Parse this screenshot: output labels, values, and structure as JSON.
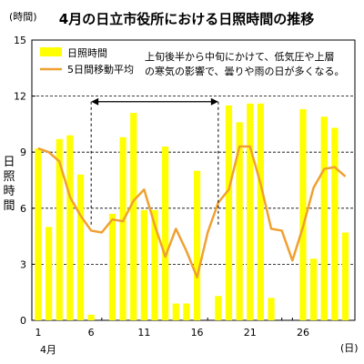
{
  "chart_data": {
    "type": "bar+line",
    "title": "4月の日立市役所における日照時間の推移",
    "ylabel_unit": "(時間)",
    "ylabel": [
      "日",
      "照",
      "時",
      "間"
    ],
    "xlabel_unit": "(日)",
    "month_label": "4月",
    "ylim": [
      0,
      15
    ],
    "yticks": [
      0,
      3,
      6,
      9,
      12,
      15
    ],
    "xticks": [
      1,
      6,
      11,
      16,
      21,
      26
    ],
    "grid": "horizontal dashed at 3, 6, 9, 12",
    "legend_position": "top-left",
    "days": [
      1,
      2,
      3,
      4,
      5,
      6,
      7,
      8,
      9,
      10,
      11,
      12,
      13,
      14,
      15,
      16,
      17,
      18,
      19,
      20,
      21,
      22,
      23,
      24,
      25,
      26,
      27,
      28,
      29,
      30
    ],
    "series": [
      {
        "name": "日照時間",
        "kind": "bar",
        "color": "#ffff00",
        "values": [
          9.2,
          5.0,
          9.7,
          9.9,
          7.8,
          0.3,
          0.0,
          5.7,
          9.8,
          11.1,
          5.9,
          5.9,
          9.3,
          0.9,
          0.9,
          8.0,
          0.0,
          1.3,
          11.5,
          10.6,
          11.6,
          11.6,
          1.2,
          0.0,
          0.0,
          11.3,
          3.3,
          10.9,
          10.3,
          4.7
        ]
      },
      {
        "name": "5日間移動平均",
        "kind": "line",
        "color": "#f0a030",
        "values": [
          9.2,
          9.0,
          8.5,
          6.6,
          5.6,
          4.8,
          4.7,
          5.4,
          5.3,
          6.4,
          7.0,
          5.1,
          3.4,
          4.9,
          3.7,
          2.3,
          4.7,
          6.3,
          7.0,
          9.3,
          9.3,
          7.3,
          4.9,
          4.8,
          3.2,
          5.0,
          7.1,
          8.1,
          8.2,
          7.7
        ]
      }
    ],
    "annotation": {
      "text_line1": "上旬後半から中旬にかけて、低気圧や上層",
      "text_line2": "の寒気の影響で、曇りや雨の日が多くなる。",
      "range_start_day": 6,
      "range_end_day": 18,
      "arrow_value": 11.7
    }
  }
}
